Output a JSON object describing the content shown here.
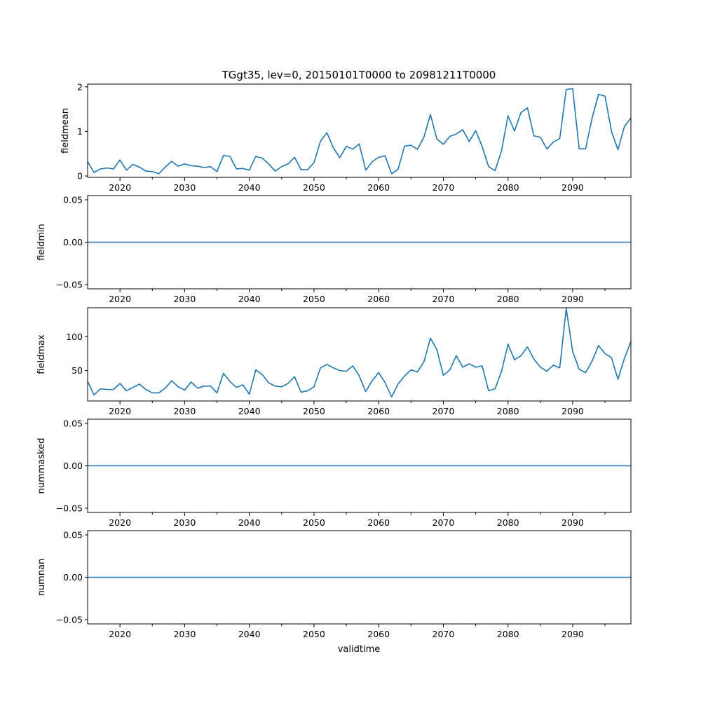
{
  "chart_data": {
    "type": "line",
    "title": "TGgt35, lev=0, 20150101T0000 to 20981211T0000",
    "xlabel": "validtime",
    "xlim": [
      2015,
      2099
    ],
    "x_ticks": [
      2020,
      2030,
      2040,
      2050,
      2060,
      2070,
      2080,
      2090
    ],
    "x_minor_ticks": [
      2025,
      2035,
      2045,
      2055,
      2065,
      2075,
      2085,
      2095
    ],
    "x_tick_labels": [
      "2020",
      "2030",
      "2040",
      "2050",
      "2060",
      "2070",
      "2080",
      "2090"
    ],
    "series_color": "#1f77b4",
    "panels": [
      {
        "ylabel": "fieldmean",
        "ylim": [
          -0.03,
          2.06
        ],
        "y_ticks": [
          0,
          1,
          2
        ],
        "y_tick_labels": [
          "0",
          "1",
          "2"
        ],
        "x": [
          2015,
          2016,
          2017,
          2018,
          2019,
          2020,
          2021,
          2022,
          2023,
          2024,
          2025,
          2026,
          2027,
          2028,
          2029,
          2030,
          2031,
          2032,
          2033,
          2034,
          2035,
          2036,
          2037,
          2038,
          2039,
          2040,
          2041,
          2042,
          2043,
          2044,
          2045,
          2046,
          2047,
          2048,
          2049,
          2050,
          2051,
          2052,
          2053,
          2054,
          2055,
          2056,
          2057,
          2058,
          2059,
          2060,
          2061,
          2062,
          2063,
          2064,
          2065,
          2066,
          2067,
          2068,
          2069,
          2070,
          2071,
          2072,
          2073,
          2074,
          2075,
          2076,
          2077,
          2078,
          2079,
          2080,
          2081,
          2082,
          2083,
          2084,
          2085,
          2086,
          2087,
          2088,
          2089,
          2090,
          2091,
          2092,
          2093,
          2094,
          2095,
          2096,
          2097,
          2098,
          2099
        ],
        "values": [
          0.32,
          0.08,
          0.16,
          0.18,
          0.16,
          0.36,
          0.13,
          0.26,
          0.2,
          0.11,
          0.1,
          0.05,
          0.2,
          0.33,
          0.22,
          0.27,
          0.23,
          0.22,
          0.19,
          0.21,
          0.1,
          0.46,
          0.44,
          0.16,
          0.17,
          0.13,
          0.44,
          0.4,
          0.27,
          0.11,
          0.21,
          0.27,
          0.42,
          0.14,
          0.14,
          0.3,
          0.78,
          0.97,
          0.63,
          0.41,
          0.67,
          0.6,
          0.72,
          0.13,
          0.32,
          0.42,
          0.45,
          0.05,
          0.15,
          0.67,
          0.69,
          0.6,
          0.87,
          1.38,
          0.83,
          0.71,
          0.89,
          0.94,
          1.04,
          0.77,
          1.02,
          0.66,
          0.21,
          0.12,
          0.57,
          1.35,
          1.01,
          1.42,
          1.53,
          0.9,
          0.87,
          0.61,
          0.76,
          0.84,
          1.94,
          1.96,
          0.61,
          0.61,
          1.3,
          1.83,
          1.79,
          1.0,
          0.59,
          1.11,
          1.3
        ]
      },
      {
        "ylabel": "fieldmin",
        "ylim": [
          -0.055,
          0.055
        ],
        "y_ticks": [
          -0.05,
          0,
          0.05
        ],
        "y_tick_labels": [
          "−0.05",
          "0.00",
          "0.05"
        ],
        "x": [
          2015,
          2099
        ],
        "values": [
          0,
          0
        ]
      },
      {
        "ylabel": "fieldmax",
        "ylim": [
          5,
          143
        ],
        "y_ticks": [
          50,
          100
        ],
        "y_tick_labels": [
          "50",
          "100"
        ],
        "x": [
          2015,
          2016,
          2017,
          2018,
          2019,
          2020,
          2021,
          2022,
          2023,
          2024,
          2025,
          2026,
          2027,
          2028,
          2029,
          2030,
          2031,
          2032,
          2033,
          2034,
          2035,
          2036,
          2037,
          2038,
          2039,
          2040,
          2041,
          2042,
          2043,
          2044,
          2045,
          2046,
          2047,
          2048,
          2049,
          2050,
          2051,
          2052,
          2053,
          2054,
          2055,
          2056,
          2057,
          2058,
          2059,
          2060,
          2061,
          2062,
          2063,
          2064,
          2065,
          2066,
          2067,
          2068,
          2069,
          2070,
          2071,
          2072,
          2073,
          2074,
          2075,
          2076,
          2077,
          2078,
          2079,
          2080,
          2081,
          2082,
          2083,
          2084,
          2085,
          2086,
          2087,
          2088,
          2089,
          2090,
          2091,
          2092,
          2093,
          2094,
          2095,
          2096,
          2097,
          2098,
          2099
        ],
        "values": [
          34,
          14,
          23,
          22,
          22,
          31,
          20,
          25,
          30,
          22,
          17,
          17,
          24,
          35,
          26,
          21,
          33,
          24,
          27,
          27,
          17,
          46,
          34,
          25,
          29,
          15,
          51,
          44,
          32,
          27,
          26,
          31,
          41,
          18,
          20,
          26,
          54,
          59,
          54,
          50,
          49,
          57,
          42,
          19,
          35,
          47,
          32,
          11,
          30,
          42,
          51,
          48,
          63,
          98,
          81,
          43,
          51,
          72,
          55,
          60,
          55,
          57,
          20,
          23,
          49,
          89,
          66,
          72,
          85,
          67,
          55,
          49,
          58,
          54,
          142,
          78,
          52,
          47,
          64,
          87,
          75,
          69,
          37,
          68,
          93
        ]
      },
      {
        "ylabel": "nummasked",
        "ylim": [
          -0.055,
          0.055
        ],
        "y_ticks": [
          -0.05,
          0,
          0.05
        ],
        "y_tick_labels": [
          "−0.05",
          "0.00",
          "0.05"
        ],
        "x": [
          2015,
          2099
        ],
        "values": [
          0,
          0
        ]
      },
      {
        "ylabel": "numnan",
        "ylim": [
          -0.055,
          0.055
        ],
        "y_ticks": [
          -0.05,
          0,
          0.05
        ],
        "y_tick_labels": [
          "−0.05",
          "0.00",
          "0.05"
        ],
        "x": [
          2015,
          2099
        ],
        "values": [
          0,
          0
        ]
      }
    ]
  }
}
